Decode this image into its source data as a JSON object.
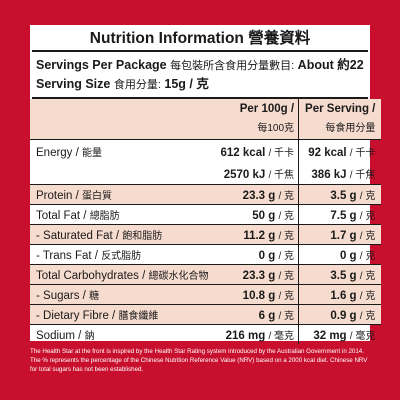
{
  "title": "Nutrition Information 營養資料",
  "servings_per_package": {
    "label": "Servings Per Package",
    "label_zh": "每包裝所含食用分量數目:",
    "value": "About 約22"
  },
  "serving_size": {
    "label": "Serving Size",
    "label_zh": "食用分量:",
    "value": "15g / 克"
  },
  "columns": {
    "per100g": "Per 100g /",
    "per100g_zh": "每100克",
    "per_serving": "Per Serving /",
    "per_serving_zh": "每食用分量"
  },
  "rows": [
    {
      "name": "Energy / ",
      "name_zh": "能量",
      "per100": "612 kcal",
      "per100_unit": "/ 千卡",
      "per_serv": "92 kcal",
      "per_serv_unit": "/ 千卡"
    },
    {
      "name": "",
      "name_zh": "",
      "per100": "2570 kJ",
      "per100_unit": "/ 千焦",
      "per_serv": "386 kJ",
      "per_serv_unit": "/ 千焦"
    },
    {
      "name": "Protein / ",
      "name_zh": "蛋白質",
      "per100": "23.3 g",
      "per100_unit": "/ 克",
      "per_serv": "3.5 g",
      "per_serv_unit": "/ 克"
    },
    {
      "name": "Total Fat / ",
      "name_zh": "總脂肪",
      "per100": "50 g",
      "per100_unit": "/ 克",
      "per_serv": "7.5 g",
      "per_serv_unit": "/ 克"
    },
    {
      "name": "- Saturated Fat / ",
      "name_zh": "飽和脂肪",
      "per100": "11.2 g",
      "per100_unit": "/ 克",
      "per_serv": "1.7 g",
      "per_serv_unit": "/ 克"
    },
    {
      "name": "- Trans Fat / ",
      "name_zh": "反式脂肪",
      "per100": "0 g",
      "per100_unit": "/ 克",
      "per_serv": "0 g",
      "per_serv_unit": "/ 克"
    },
    {
      "name": "Total Carbohydrates / ",
      "name_zh": "總碳水化合物",
      "per100": "23.3 g",
      "per100_unit": "/ 克",
      "per_serv": "3.5 g",
      "per_serv_unit": "/ 克"
    },
    {
      "name": "- Sugars / ",
      "name_zh": "糖",
      "per100": "10.8 g",
      "per100_unit": "/ 克",
      "per_serv": "1.6 g",
      "per_serv_unit": "/ 克"
    },
    {
      "name": "- Dietary Fibre / ",
      "name_zh": "膳食纖維",
      "per100": "6 g",
      "per100_unit": "/ 克",
      "per_serv": "0.9 g",
      "per_serv_unit": "/ 克"
    },
    {
      "name": "Sodium / ",
      "name_zh": "鈉",
      "per100": "216 mg",
      "per100_unit": "/ 毫克",
      "per_serv": "32 mg",
      "per_serv_unit": "/ 毫克"
    }
  ],
  "footnote": "The Health Star at the front is inspired by the Health Star Rating system introduced by the Australian Government in 2014. The % represents the percentage of the Chinese Nutrition Reference Value (NRV) based on a 2000 kcal diet. Chinese NRV for total sugars has not been established.",
  "colors": {
    "background": "#c8102e",
    "row_tint": "#f6dbcf",
    "panel": "#ffffff"
  }
}
